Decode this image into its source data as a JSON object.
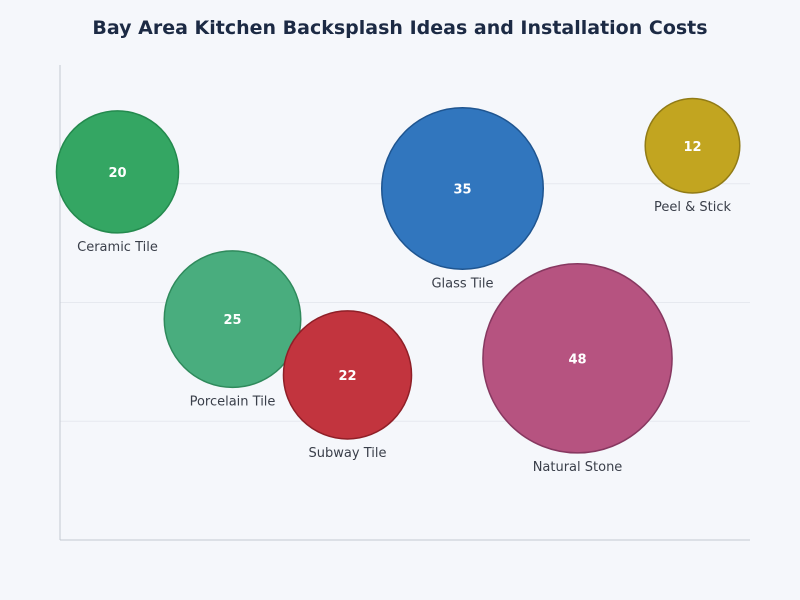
{
  "chart_data": {
    "type": "bubble",
    "title": "Bay Area Kitchen Backsplash Ideas and Installation Costs",
    "xlabel": "",
    "ylabel": "",
    "xlim": [
      0,
      6
    ],
    "ylim": [
      0,
      4
    ],
    "grid": true,
    "series": [
      {
        "label": "Ceramic Tile",
        "x": 0.5,
        "y": 3.1,
        "size": 20,
        "color": "#34a663",
        "stroke": "#248a4e"
      },
      {
        "label": "Porcelain Tile",
        "x": 1.5,
        "y": 1.86,
        "size": 25,
        "color": "#49ad7e",
        "stroke": "#2f8a5c"
      },
      {
        "label": "Subway Tile",
        "x": 2.5,
        "y": 1.39,
        "size": 22,
        "color": "#c2343e",
        "stroke": "#8f1f27"
      },
      {
        "label": "Glass Tile",
        "x": 3.5,
        "y": 2.96,
        "size": 35,
        "color": "#3176be",
        "stroke": "#1f5590"
      },
      {
        "label": "Natural Stone",
        "x": 4.5,
        "y": 1.53,
        "size": 48,
        "color": "#b65380",
        "stroke": "#873860"
      },
      {
        "label": "Peel & Stick",
        "x": 5.5,
        "y": 3.32,
        "size": 12,
        "color": "#c2a520",
        "stroke": "#917b16"
      }
    ]
  }
}
